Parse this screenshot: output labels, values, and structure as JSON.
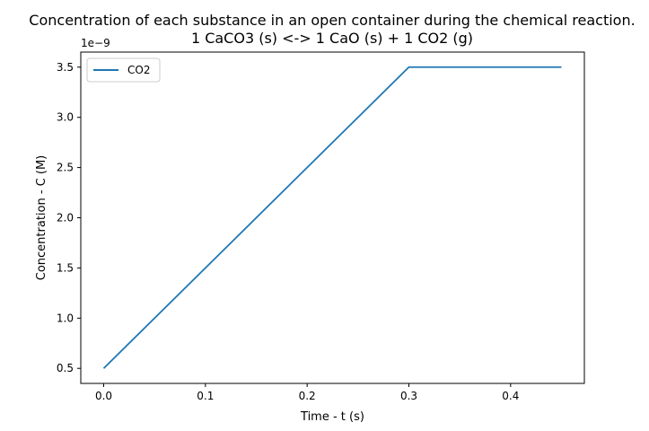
{
  "chart_data": {
    "type": "line",
    "title": "Concentration of each substance in an open container during the chemical reaction.",
    "subtitle": "1 CaCO3 (s) <-> 1 CaO (s) + 1 CO2 (g)",
    "xlabel": "Time - t (s)",
    "ylabel": "Concentration - C (M)",
    "y_offset_label": "1e−9",
    "xlim": [
      -0.0225,
      0.4725
    ],
    "ylim": [
      0.35,
      3.65
    ],
    "x_ticks": [
      0.0,
      0.1,
      0.2,
      0.3,
      0.4
    ],
    "x_tick_labels": [
      "0.0",
      "0.1",
      "0.2",
      "0.3",
      "0.4"
    ],
    "y_ticks": [
      0.5,
      1.0,
      1.5,
      2.0,
      2.5,
      3.0,
      3.5
    ],
    "y_tick_labels": [
      "0.5",
      "1.0",
      "1.5",
      "2.0",
      "2.5",
      "3.0",
      "3.5"
    ],
    "grid": false,
    "legend_position": "top-left",
    "series": [
      {
        "name": "CO2",
        "color": "#1f77b4",
        "x": [
          0.0,
          0.3,
          0.45
        ],
        "y": [
          0.5,
          3.5,
          3.5
        ]
      }
    ]
  }
}
